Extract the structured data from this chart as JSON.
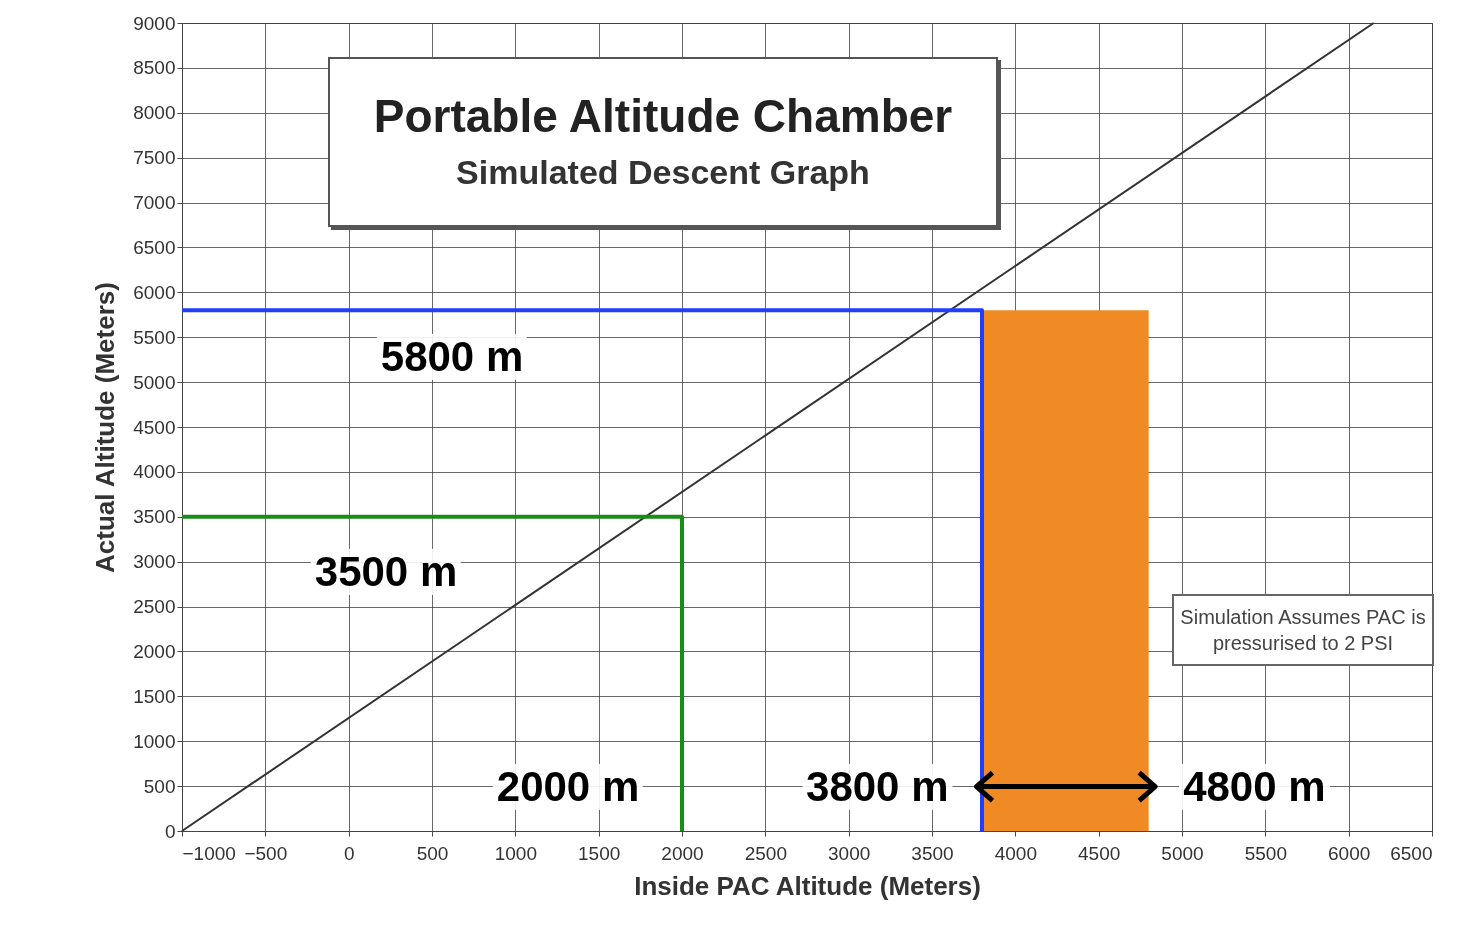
{
  "chart_data": {
    "type": "line",
    "title": "Portable Altitude Chamber",
    "subtitle": "Simulated Descent Graph",
    "xlabel": "Inside PAC Altitude (Meters)",
    "ylabel": "Actual Altitude (Meters)",
    "xlim": [
      -1000,
      6500
    ],
    "xticks": [
      -1000,
      -500,
      0,
      500,
      1000,
      1500,
      2000,
      2500,
      3000,
      3500,
      4000,
      4500,
      5000,
      5500,
      6000,
      6500
    ],
    "ylim": [
      0,
      9000
    ],
    "yticks": [
      0,
      500,
      1000,
      1500,
      2000,
      2500,
      3000,
      3500,
      4000,
      4500,
      5000,
      5500,
      6000,
      6500,
      7000,
      7500,
      8000,
      8500,
      9000
    ],
    "grid": true,
    "marker": "none",
    "line_style": "solid",
    "series": [
      {
        "type": "area",
        "color": "#f08a24",
        "x": [
          3800,
          4800
        ],
        "values": [
          5800,
          5800
        ]
      },
      {
        "color": "#333333",
        "x": [
          -1000,
          6150
        ],
        "values": [
          0,
          9000
        ]
      },
      {
        "color": "#1a8c1a",
        "x": [
          -1000,
          2000,
          2000
        ],
        "values": [
          3500,
          3500,
          0
        ]
      },
      {
        "color": "#1f3fff",
        "x": [
          -1000,
          3800,
          3800
        ],
        "values": [
          5800,
          5800,
          0
        ]
      }
    ],
    "annotations": [
      "5800 m",
      "3500 m",
      "2000 m",
      {
        "text": "3800 m",
        "x": 3800,
        "y": 500
      },
      {
        "text": "4800 m",
        "x": 4800,
        "y": 500
      },
      "Simulation Assumes PAC is pressurised to 2 PSI"
    ]
  }
}
